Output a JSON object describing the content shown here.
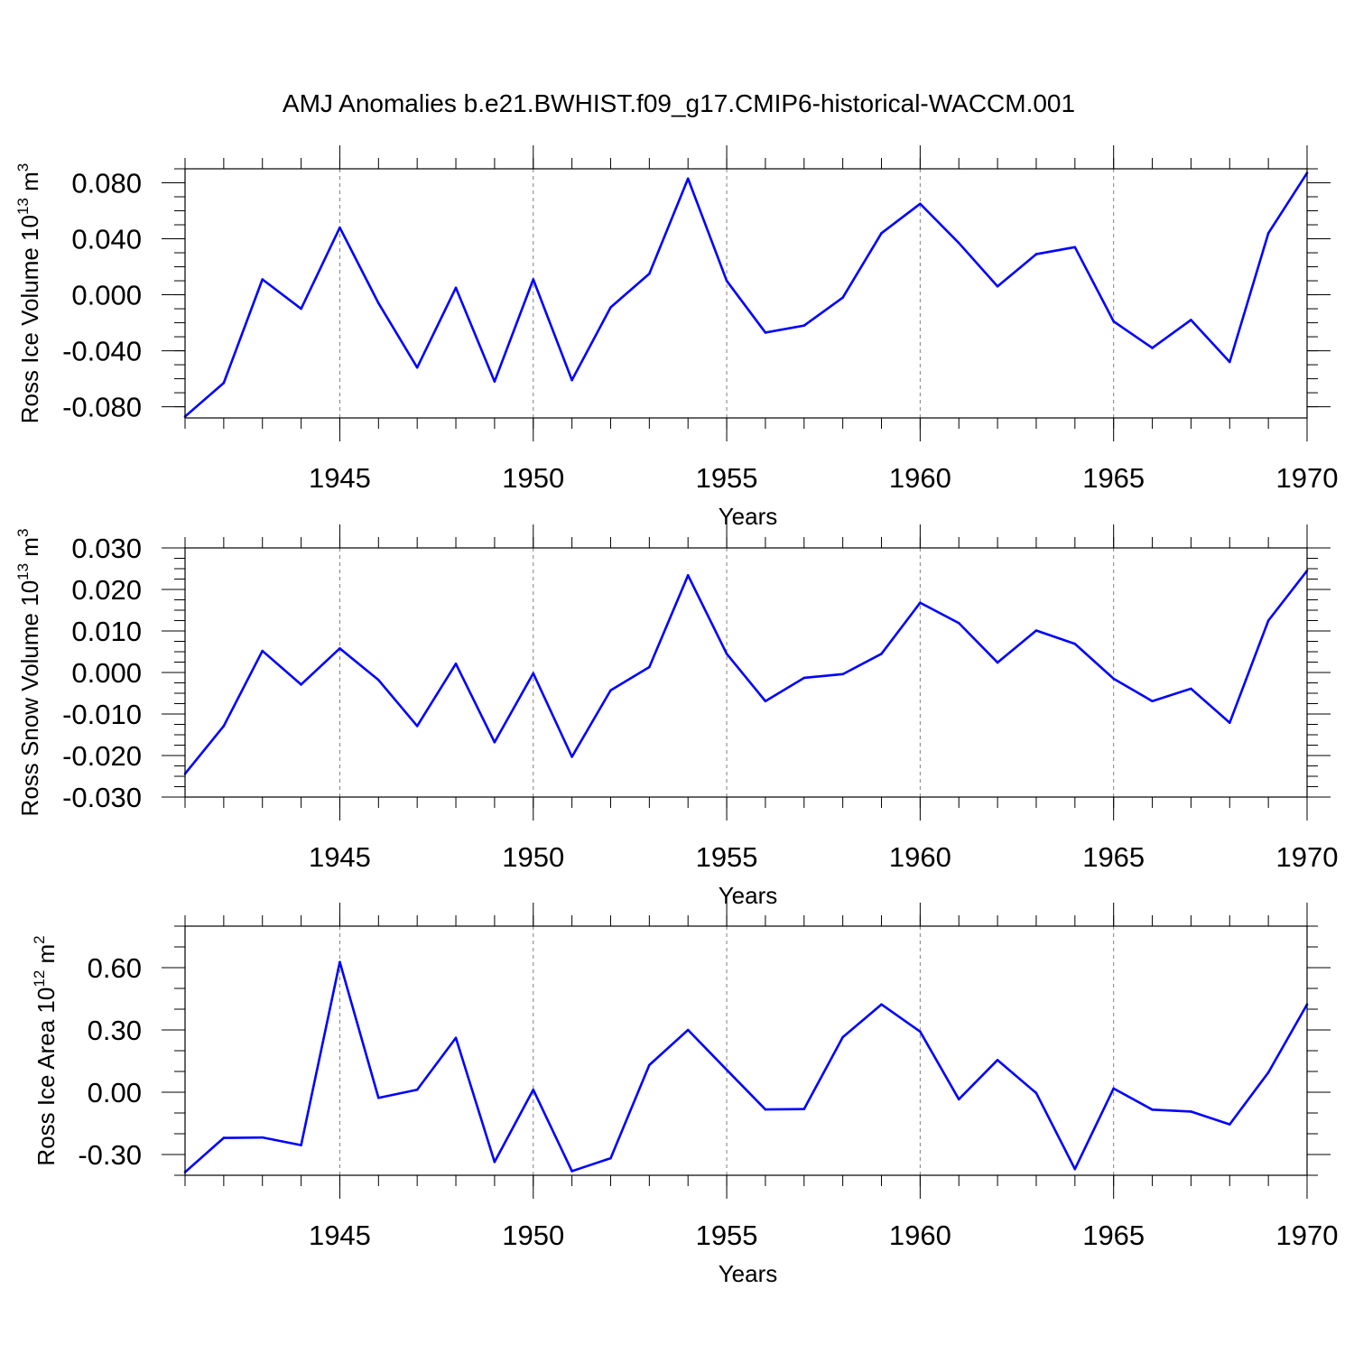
{
  "title": "AMJ Anomalies b.e21.BWHIST.f09_g17.CMIP6-historical-WACCM.001",
  "colors": {
    "line": "#0000ff",
    "axis": "#000000",
    "grid": "#808080"
  },
  "chart_data": [
    {
      "type": "line",
      "ylabel": "Ross Ice Volume",
      "yunit_base": "10",
      "yunit_exp": "13",
      "yunit_name": "m",
      "yunit_pow": "3",
      "xlabel": "Years",
      "xlim": [
        1941,
        1970
      ],
      "ylim": [
        -0.088,
        0.09
      ],
      "grid": "vertical dashed at major x ticks",
      "x_ticks": [
        1945,
        1950,
        1955,
        1960,
        1965,
        1970
      ],
      "x_tick_labels": [
        "1945",
        "1950",
        "1955",
        "1960",
        "1965",
        "1970"
      ],
      "y_ticks": [
        -0.08,
        -0.04,
        0.0,
        0.04,
        0.08
      ],
      "y_tick_labels": [
        "-0.080",
        "-0.040",
        "0.000",
        "0.040",
        "0.080"
      ],
      "y_minor_step": 0.01,
      "x": [
        1941,
        1942,
        1943,
        1944,
        1945,
        1946,
        1947,
        1948,
        1949,
        1950,
        1951,
        1952,
        1953,
        1954,
        1955,
        1956,
        1957,
        1958,
        1959,
        1960,
        1961,
        1962,
        1963,
        1964,
        1965,
        1966,
        1967,
        1968,
        1969,
        1970
      ],
      "values": [
        -0.087,
        -0.063,
        0.011,
        -0.01,
        0.048,
        -0.006,
        -0.052,
        0.005,
        -0.062,
        0.011,
        -0.061,
        -0.009,
        0.015,
        0.083,
        0.01,
        -0.027,
        -0.022,
        -0.002,
        0.044,
        0.065,
        0.037,
        0.006,
        0.029,
        0.034,
        -0.019,
        -0.038,
        -0.018,
        -0.048,
        0.044,
        0.087
      ]
    },
    {
      "type": "line",
      "ylabel": "Ross Snow Volume",
      "yunit_base": "10",
      "yunit_exp": "13",
      "yunit_name": "m",
      "yunit_pow": "3",
      "xlabel": "Years",
      "xlim": [
        1941,
        1970
      ],
      "ylim": [
        -0.03,
        0.03
      ],
      "grid": "vertical dashed at major x ticks",
      "x_ticks": [
        1945,
        1950,
        1955,
        1960,
        1965,
        1970
      ],
      "x_tick_labels": [
        "1945",
        "1950",
        "1955",
        "1960",
        "1965",
        "1970"
      ],
      "y_ticks": [
        -0.03,
        -0.02,
        -0.01,
        0.0,
        0.01,
        0.02,
        0.03
      ],
      "y_tick_labels": [
        "-0.030",
        "-0.020",
        "-0.010",
        "0.000",
        "0.010",
        "0.020",
        "0.030"
      ],
      "y_minor_step": 0.0025,
      "x": [
        1941,
        1942,
        1943,
        1944,
        1945,
        1946,
        1947,
        1948,
        1949,
        1950,
        1951,
        1952,
        1953,
        1954,
        1955,
        1956,
        1957,
        1958,
        1959,
        1960,
        1961,
        1962,
        1963,
        1964,
        1965,
        1966,
        1967,
        1968,
        1969,
        1970
      ],
      "values": [
        -0.0244,
        -0.0129,
        0.0052,
        -0.0029,
        0.0058,
        -0.0018,
        -0.0129,
        0.0021,
        -0.0168,
        -0.0002,
        -0.0203,
        -0.0043,
        0.0013,
        0.0234,
        0.0045,
        -0.0069,
        -0.0013,
        -0.0004,
        0.0045,
        0.0168,
        0.0119,
        0.0024,
        0.0101,
        0.0069,
        -0.0015,
        -0.0069,
        -0.0039,
        -0.0121,
        0.0125,
        0.0245
      ]
    },
    {
      "type": "line",
      "ylabel": "Ross Ice Area",
      "yunit_base": "10",
      "yunit_exp": "12",
      "yunit_name": "m",
      "yunit_pow": "2",
      "xlabel": "Years",
      "xlim": [
        1941,
        1970
      ],
      "ylim": [
        -0.4,
        0.8
      ],
      "grid": "vertical dashed at major x ticks",
      "x_ticks": [
        1945,
        1950,
        1955,
        1960,
        1965,
        1970
      ],
      "x_tick_labels": [
        "1945",
        "1950",
        "1955",
        "1960",
        "1965",
        "1970"
      ],
      "y_ticks": [
        -0.3,
        0.0,
        0.3,
        0.6
      ],
      "y_tick_labels": [
        "-0.30",
        "0.00",
        "0.30",
        "0.60"
      ],
      "y_minor_step": 0.1,
      "x": [
        1941,
        1942,
        1943,
        1944,
        1945,
        1946,
        1947,
        1948,
        1949,
        1950,
        1951,
        1952,
        1953,
        1954,
        1955,
        1956,
        1957,
        1958,
        1959,
        1960,
        1961,
        1962,
        1963,
        1964,
        1965,
        1966,
        1967,
        1968,
        1969,
        1970
      ],
      "values": [
        -0.385,
        -0.22,
        -0.218,
        -0.255,
        0.627,
        -0.027,
        0.012,
        0.262,
        -0.336,
        0.012,
        -0.38,
        -0.318,
        0.131,
        0.3,
        0.108,
        -0.083,
        -0.081,
        0.265,
        0.423,
        0.292,
        -0.034,
        0.155,
        -0.004,
        -0.37,
        0.018,
        -0.084,
        -0.093,
        -0.155,
        0.095,
        0.423
      ]
    }
  ]
}
